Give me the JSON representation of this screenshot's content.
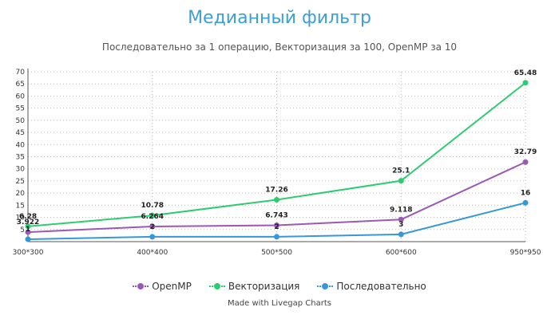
{
  "chart_data": {
    "type": "line",
    "title": "Медианный фильтр",
    "subtitle": "Последовательно за 1 операцию, Векторизация за 100, OpenMP за 10",
    "categories": [
      "300*300",
      "400*400",
      "500*500",
      "600*600",
      "950*950"
    ],
    "ylim": [
      0,
      70
    ],
    "yticks": [
      5,
      10,
      15,
      20,
      25,
      30,
      35,
      40,
      45,
      50,
      55,
      60,
      65,
      70
    ],
    "grid": true,
    "legend_position": "bottom",
    "series": [
      {
        "name": "OpenMP",
        "color": "#9b59b6",
        "values": [
          3.922,
          6.264,
          6.743,
          9.118,
          32.79
        ],
        "labels": [
          "3.922",
          "6.264",
          "6.743",
          "9.118",
          "32.79"
        ]
      },
      {
        "name": "Векторизация",
        "color": "#2ecc71",
        "values": [
          6.28,
          10.78,
          17.26,
          25.1,
          65.48
        ],
        "labels": [
          "6.28",
          "10.78",
          "17.26",
          "25.1",
          "65.48"
        ]
      },
      {
        "name": "Последовательно",
        "color": "#3498db",
        "values": [
          1,
          2,
          2,
          3,
          16
        ],
        "labels": [
          "1",
          "2",
          "2",
          "3",
          "16"
        ]
      }
    ]
  },
  "legend": {
    "items": [
      "OpenMP",
      "Векторизация",
      "Последовательно"
    ]
  },
  "footer": {
    "credit": "Made with Livegap Charts"
  }
}
